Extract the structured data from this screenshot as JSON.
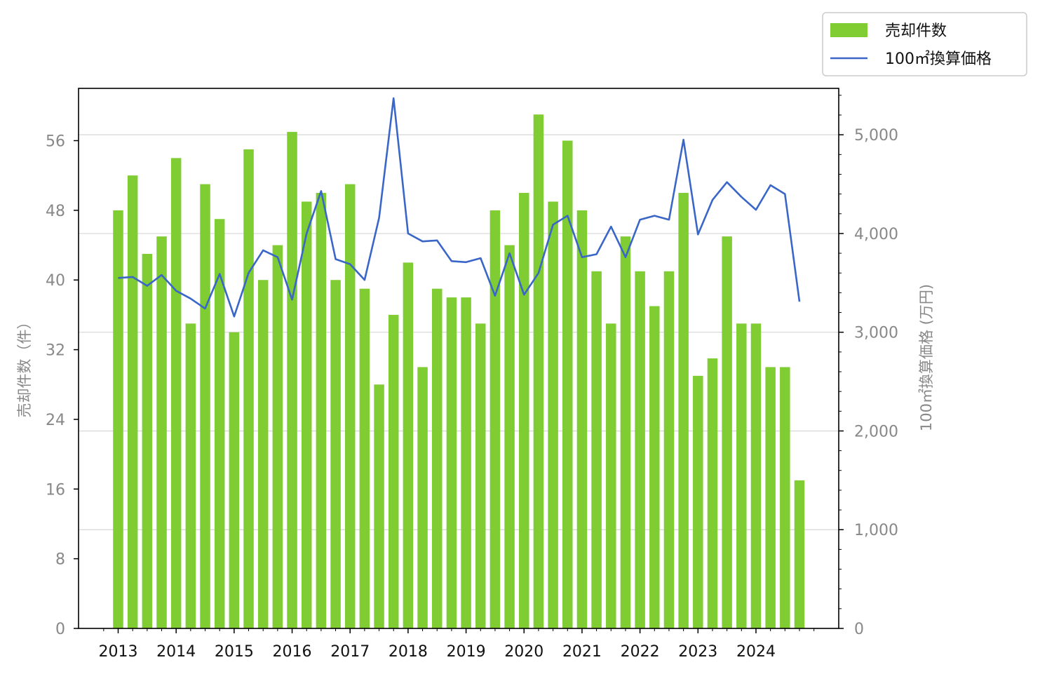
{
  "chart_data": {
    "type": "bar",
    "title": "",
    "x_tick_labels": [
      "2013",
      "2014",
      "2015",
      "2016",
      "2017",
      "2018",
      "2019",
      "2020",
      "2021",
      "2022",
      "2023",
      "2024"
    ],
    "quarters_per_year": 4,
    "left_axis": {
      "label": "売却件数（件）",
      "ylim": [
        0,
        62
      ],
      "ticks": [
        0,
        8,
        16,
        24,
        32,
        40,
        48,
        56
      ],
      "tick_labels": [
        "0",
        "8",
        "16",
        "24",
        "32",
        "40",
        "48",
        "56"
      ]
    },
    "right_axis": {
      "label": "100㎡換算価格 (万円)",
      "ylim": [
        0,
        5470
      ],
      "ticks": [
        0,
        1000,
        2000,
        3000,
        4000,
        5000
      ],
      "tick_labels": [
        "0",
        "1,000",
        "2,000",
        "3,000",
        "4,000",
        "5,000"
      ]
    },
    "series": [
      {
        "name": "売却件数",
        "type": "bar",
        "axis": "left",
        "color": "#7fcc33",
        "values": [
          48,
          52,
          43,
          45,
          54,
          35,
          51,
          47,
          34,
          55,
          40,
          44,
          57,
          49,
          50,
          40,
          51,
          39,
          28,
          36,
          42,
          30,
          39,
          38,
          38,
          35,
          48,
          44,
          50,
          59,
          49,
          56,
          48,
          41,
          35,
          45,
          41,
          37,
          41,
          50,
          29,
          31,
          45,
          35,
          35,
          30,
          30,
          17
        ]
      },
      {
        "name": "100㎡換算価格",
        "type": "line",
        "axis": "right",
        "color": "#3a66c8",
        "values": [
          3550,
          3560,
          3470,
          3580,
          3420,
          3340,
          3240,
          3590,
          3160,
          3600,
          3830,
          3760,
          3330,
          4000,
          4430,
          3740,
          3690,
          3530,
          4160,
          5370,
          4000,
          3920,
          3930,
          3720,
          3710,
          3750,
          3370,
          3800,
          3380,
          3600,
          4090,
          4180,
          3760,
          3790,
          4070,
          3760,
          4140,
          4180,
          4140,
          4950,
          3990,
          4340,
          4520,
          4370,
          4240,
          4490,
          4400,
          3310
        ]
      }
    ],
    "grid": "horizontal (right axis)",
    "legend_position": "top-right"
  }
}
